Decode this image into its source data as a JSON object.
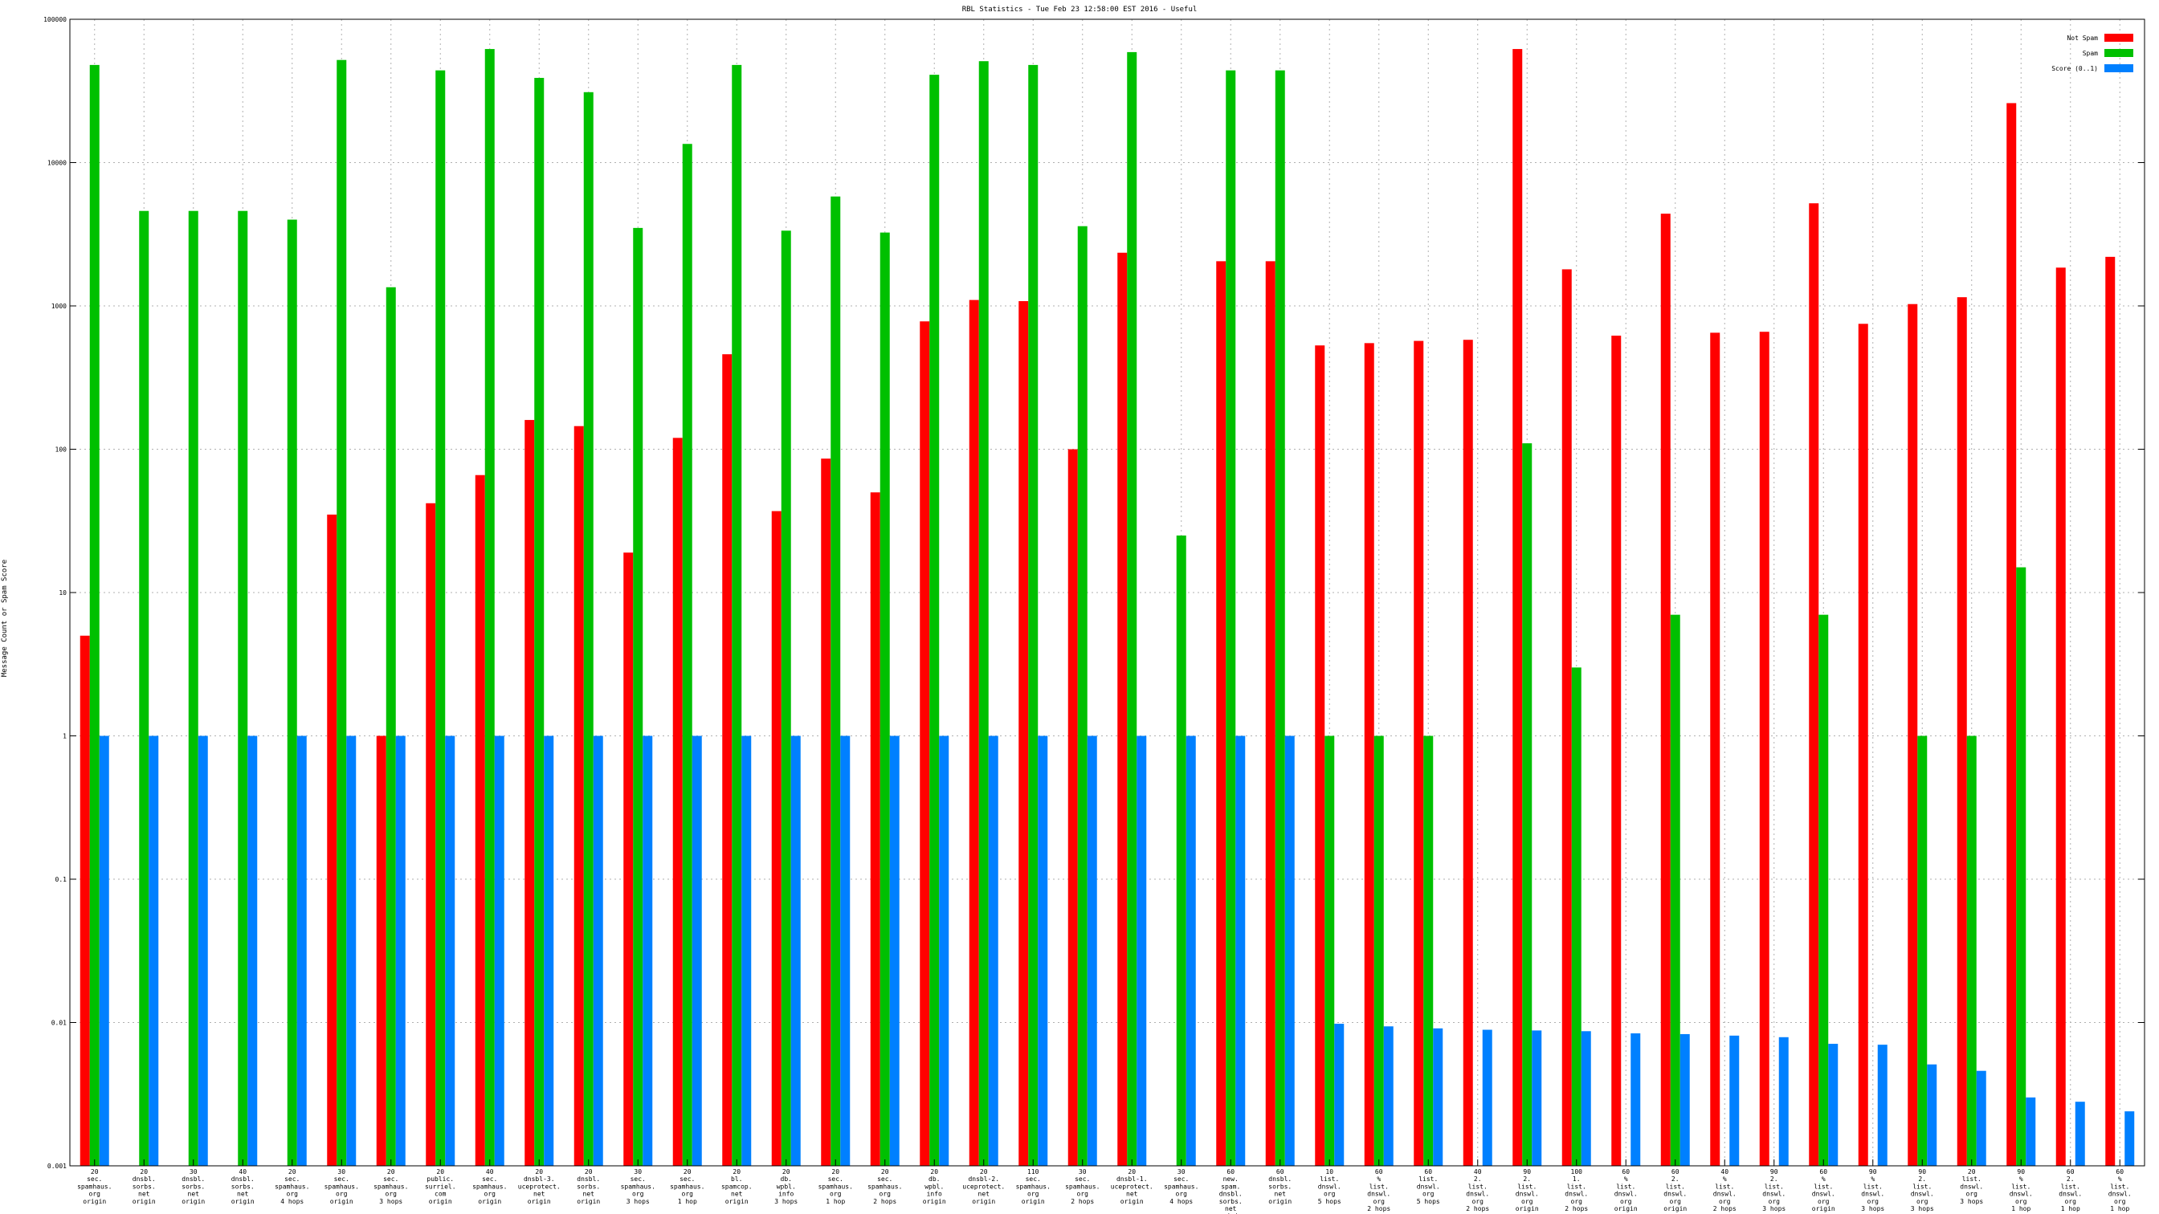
{
  "chart_data": {
    "type": "bar",
    "title": "RBL Statistics - Tue Feb 23 12:58:00 EST 2016 - Useful",
    "xlabel": "",
    "ylabel": "Message Count or Spam Score",
    "yscale": "log",
    "ylim": [
      0.001,
      100000
    ],
    "grid": true,
    "legend_position": "top-right",
    "yticks": [
      "0.001",
      "0.01",
      "0.1",
      "1",
      "10",
      "100",
      "1000",
      "10000",
      "100000"
    ],
    "categories": [
      [
        "20",
        "sec.",
        "spamhaus.",
        "org",
        "origin"
      ],
      [
        "20",
        "dnsbl.",
        "sorbs.",
        "net",
        "origin"
      ],
      [
        "30",
        "dnsbl.",
        "sorbs.",
        "net",
        "origin"
      ],
      [
        "40",
        "dnsbl.",
        "sorbs.",
        "net",
        "origin"
      ],
      [
        "20",
        "sec.",
        "spamhaus.",
        "org",
        "4 hops"
      ],
      [
        "30",
        "sec.",
        "spamhaus.",
        "org",
        "origin"
      ],
      [
        "20",
        "sec.",
        "spamhaus.",
        "org",
        "3 hops"
      ],
      [
        "20",
        "public.",
        "surriel.",
        "com",
        "origin"
      ],
      [
        "40",
        "sec.",
        "spamhaus.",
        "org",
        "origin"
      ],
      [
        "20",
        "dnsbl-3.",
        "uceprotect.",
        "net",
        "origin"
      ],
      [
        "20",
        "dnsbl.",
        "sorbs.",
        "net",
        "origin"
      ],
      [
        "30",
        "sec.",
        "spamhaus.",
        "org",
        "3 hops"
      ],
      [
        "20",
        "sec.",
        "spamhaus.",
        "org",
        "1 hop"
      ],
      [
        "20",
        "bl.",
        "spamcop.",
        "net",
        "origin"
      ],
      [
        "20",
        "db.",
        "wpbl.",
        "info",
        "3 hops"
      ],
      [
        "20",
        "sec.",
        "spamhaus.",
        "org",
        "1 hop"
      ],
      [
        "20",
        "sec.",
        "spamhaus.",
        "org",
        "2 hops"
      ],
      [
        "20",
        "db.",
        "wpbl.",
        "info",
        "origin"
      ],
      [
        "20",
        "dnsbl-2.",
        "uceprotect.",
        "net",
        "origin"
      ],
      [
        "110",
        "sec.",
        "spamhaus.",
        "org",
        "origin"
      ],
      [
        "30",
        "sec.",
        "spamhaus.",
        "org",
        "2 hops"
      ],
      [
        "20",
        "dnsbl-1.",
        "uceprotect.",
        "net",
        "origin"
      ],
      [
        "30",
        "sec.",
        "spamhaus.",
        "org",
        "4 hops"
      ],
      [
        "60",
        "new.",
        "spam.",
        "dnsbl.",
        "sorbs.",
        "net",
        "origin"
      ],
      [
        "60",
        "dnsbl.",
        "sorbs.",
        "net",
        "origin"
      ],
      [
        "10",
        "list.",
        "dnswl.",
        "org",
        "5 hops"
      ],
      [
        "60",
        "%",
        "list.",
        "dnswl.",
        "org",
        "2 hops"
      ],
      [
        "60",
        "list.",
        "dnswl.",
        "org",
        "5 hops"
      ],
      [
        "40",
        "2.",
        "list.",
        "dnswl.",
        "org",
        "2 hops"
      ],
      [
        "90",
        "2.",
        "list.",
        "dnswl.",
        "org",
        "origin"
      ],
      [
        "100",
        "1.",
        "list.",
        "dnswl.",
        "org",
        "2 hops"
      ],
      [
        "60",
        "%",
        "list.",
        "dnswl.",
        "org",
        "origin"
      ],
      [
        "60",
        "2.",
        "list.",
        "dnswl.",
        "org",
        "origin"
      ],
      [
        "40",
        "%",
        "list.",
        "dnswl.",
        "org",
        "2 hops"
      ],
      [
        "90",
        "2.",
        "list.",
        "dnswl.",
        "org",
        "3 hops"
      ],
      [
        "60",
        "%",
        "list.",
        "dnswl.",
        "org",
        "origin"
      ],
      [
        "90",
        "%",
        "list.",
        "dnswl.",
        "org",
        "3 hops"
      ],
      [
        "90",
        "2.",
        "list.",
        "dnswl.",
        "org",
        "3 hops"
      ],
      [
        "20",
        "list.",
        "dnswl.",
        "org",
        "3 hops"
      ],
      [
        "90",
        "%",
        "list.",
        "dnswl.",
        "org",
        "1 hop"
      ],
      [
        "60",
        "2.",
        "list.",
        "dnswl.",
        "org",
        "1 hop"
      ],
      [
        "60",
        "%",
        "list.",
        "dnswl.",
        "org",
        "1 hop"
      ]
    ],
    "series": [
      {
        "name": "Not Spam",
        "color": "#ff0000",
        "values": [
          5,
          null,
          null,
          null,
          null,
          35,
          1,
          42,
          66,
          160,
          145,
          19,
          120,
          460,
          37,
          86,
          50,
          780,
          1100,
          1080,
          100,
          2350,
          null,
          2050,
          2050,
          530,
          550,
          570,
          580,
          62000,
          1800,
          620,
          4400,
          650,
          660,
          5200,
          750,
          1030,
          1150,
          26000,
          1850,
          2200
        ]
      },
      {
        "name": "Spam",
        "color": "#00c000",
        "values": [
          48000,
          4600,
          4600,
          4600,
          4000,
          52000,
          1350,
          44000,
          62000,
          39000,
          31000,
          3500,
          13500,
          48000,
          3350,
          5800,
          3250,
          41000,
          51000,
          48000,
          3600,
          59000,
          25,
          44000,
          44000,
          1,
          1,
          1,
          null,
          110,
          3,
          null,
          7,
          null,
          null,
          7,
          null,
          1,
          1,
          15,
          null,
          null
        ]
      },
      {
        "name": "Score (0..1)",
        "color": "#0080ff",
        "values": [
          1,
          1,
          1,
          1,
          1,
          1,
          1,
          1,
          1,
          1,
          1,
          1,
          1,
          1,
          1,
          1,
          1,
          1,
          1,
          1,
          1,
          1,
          1,
          1,
          1,
          0.0098,
          0.0094,
          0.0091,
          0.0089,
          0.0088,
          0.0087,
          0.0084,
          0.0083,
          0.0081,
          0.0079,
          0.0071,
          0.007,
          0.0051,
          0.0046,
          0.003,
          0.0028,
          0.0024
        ]
      }
    ]
  }
}
